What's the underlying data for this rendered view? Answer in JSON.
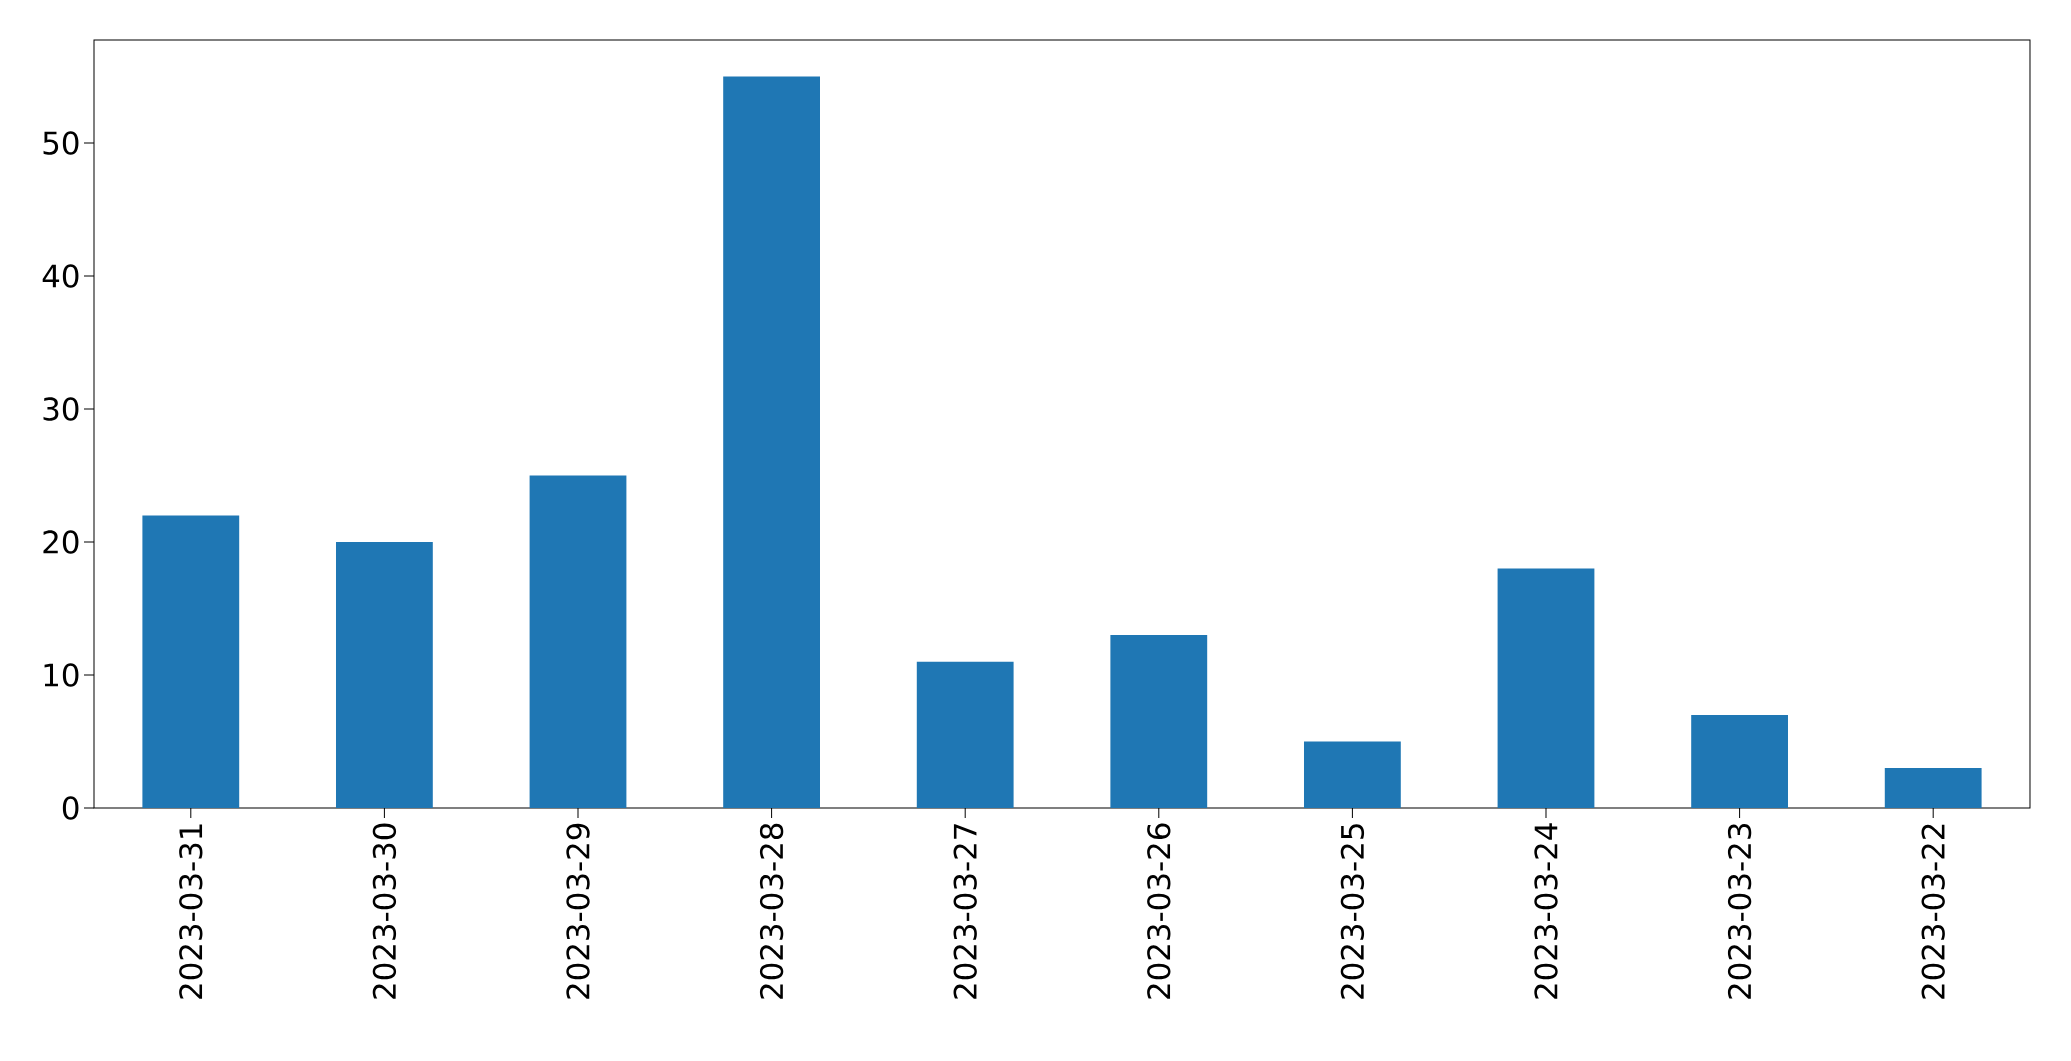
{
  "chart_data": {
    "type": "bar",
    "categories": [
      "2023-03-31",
      "2023-03-30",
      "2023-03-29",
      "2023-03-28",
      "2023-03-27",
      "2023-03-26",
      "2023-03-25",
      "2023-03-24",
      "2023-03-23",
      "2023-03-22"
    ],
    "values": [
      22,
      20,
      25,
      55,
      11,
      13,
      5,
      18,
      7,
      3
    ],
    "color": "#1f77b4",
    "ylim": [
      0,
      57.75
    ],
    "yticks": [
      0,
      10,
      20,
      30,
      40,
      50
    ]
  }
}
